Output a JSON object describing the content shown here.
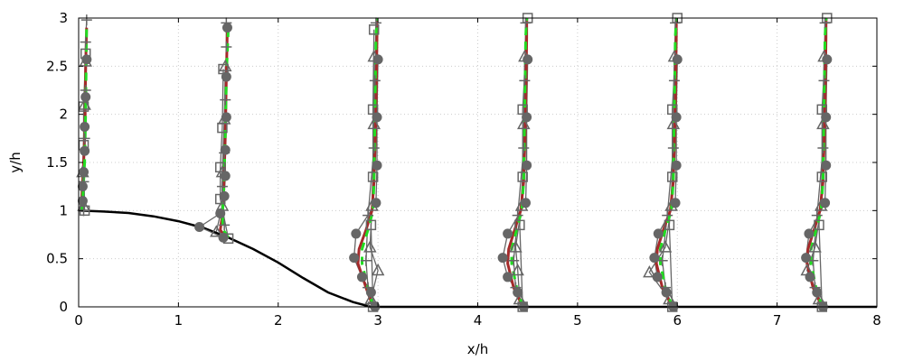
{
  "chart_data": {
    "type": "line",
    "title": "",
    "xlabel": "x/h",
    "ylabel": "y/h",
    "xlim": [
      0,
      8
    ],
    "ylim": [
      0,
      3
    ],
    "x_ticks": [
      "0",
      "1",
      "2",
      "3",
      "4",
      "5",
      "6",
      "7",
      "8"
    ],
    "y_ticks": [
      "0",
      "0.5",
      "1",
      "1.5",
      "2",
      "2.5",
      "3"
    ],
    "grid": true,
    "legend": "none",
    "colors": {
      "wall": "#000000",
      "profile_solid": "#a52a2a",
      "profile_dashed": "#22dd22",
      "markers": "#666666",
      "grid": "#cccccc"
    },
    "hill_wall": {
      "x": [
        0,
        0.25,
        0.5,
        0.75,
        1.0,
        1.25,
        1.5,
        1.75,
        2.0,
        2.25,
        2.5,
        2.75,
        2.93,
        3.2,
        8.0
      ],
      "y": [
        1.0,
        0.99,
        0.975,
        0.94,
        0.89,
        0.82,
        0.72,
        0.6,
        0.46,
        0.3,
        0.15,
        0.05,
        0.0,
        0.0,
        0.0
      ]
    },
    "stations": [
      {
        "x0": 0.05,
        "y": [
          1.0,
          1.1,
          1.3,
          1.5,
          1.75,
          2.0,
          2.5,
          2.9
        ],
        "solid": [
          0.02,
          0.03,
          0.04,
          0.05,
          0.06,
          0.065,
          0.07,
          0.08
        ],
        "dashed": [
          0.03,
          0.04,
          0.05,
          0.06,
          0.065,
          0.07,
          0.075,
          0.08
        ],
        "circles": {
          "y": [
            1.1,
            1.25,
            1.4,
            1.62,
            1.87,
            2.18,
            2.57
          ],
          "x": [
            0.04,
            0.04,
            0.05,
            0.06,
            0.06,
            0.07,
            0.08
          ]
        },
        "squares": {
          "y": [
            1.0,
            1.68,
            2.08,
            2.63
          ],
          "x": [
            0.06,
            0.05,
            0.05,
            0.07
          ]
        },
        "triangles": {
          "y": [
            1.05,
            1.4,
            2.1,
            2.55
          ],
          "x": [
            0.05,
            0.04,
            0.06,
            0.07
          ]
        },
        "plus": {
          "y": [
            1.0,
            1.3,
            1.75,
            2.25,
            2.75,
            2.98
          ],
          "x": [
            0.05,
            0.05,
            0.06,
            0.07,
            0.07,
            0.08
          ]
        }
      },
      {
        "x0": 1.45,
        "y": [
          0.72,
          0.8,
          0.95,
          1.1,
          1.4,
          1.8,
          2.4,
          2.9
        ],
        "solid": [
          1.47,
          1.42,
          1.44,
          1.45,
          1.46,
          1.47,
          1.48,
          1.49
        ],
        "dashed": [
          1.5,
          1.45,
          1.44,
          1.45,
          1.46,
          1.47,
          1.48,
          1.5
        ],
        "circles": {
          "y": [
            0.72,
            0.83,
            0.97,
            1.15,
            1.36,
            1.63,
            1.97,
            2.39,
            2.9
          ],
          "x": [
            1.45,
            1.21,
            1.42,
            1.46,
            1.47,
            1.47,
            1.48,
            1.48,
            1.49
          ]
        },
        "squares": {
          "y": [
            0.71,
            1.12,
            1.45,
            1.86,
            2.47
          ],
          "x": [
            1.5,
            1.42,
            1.42,
            1.44,
            1.45
          ]
        },
        "triangles": {
          "y": [
            0.78,
            1.05,
            1.4,
            1.95,
            2.5
          ],
          "x": [
            1.38,
            1.44,
            1.44,
            1.46,
            1.47
          ]
        },
        "plus": {
          "y": [
            0.85,
            1.25,
            1.6,
            2.15,
            2.7,
            2.95
          ],
          "x": [
            1.46,
            1.44,
            1.46,
            1.47,
            1.48,
            1.48
          ]
        }
      },
      {
        "x0": 2.95,
        "y": [
          0.0,
          0.2,
          0.45,
          0.6,
          0.8,
          1.0,
          1.3,
          2.0,
          2.8,
          3.0
        ],
        "solid": [
          2.95,
          2.88,
          2.8,
          2.81,
          2.88,
          2.94,
          2.96,
          2.98,
          2.99,
          2.99
        ],
        "dashed": [
          2.95,
          2.9,
          2.84,
          2.84,
          2.9,
          2.95,
          2.96,
          2.97,
          2.98,
          2.99
        ],
        "circles": {
          "y": [
            0.0,
            0.15,
            0.31,
            0.51,
            0.76,
            1.08,
            1.47,
            1.97,
            2.57
          ],
          "x": [
            2.97,
            2.93,
            2.84,
            2.76,
            2.78,
            2.98,
            2.99,
            2.99,
            3.0
          ]
        },
        "squares": {
          "y": [
            0.0,
            0.85,
            1.35,
            2.05,
            2.88
          ],
          "x": [
            2.95,
            2.93,
            2.95,
            2.95,
            2.96
          ]
        },
        "triangles": {
          "y": [
            0.08,
            0.38,
            0.62,
            1.05,
            1.9,
            2.6
          ],
          "x": [
            2.93,
            3.0,
            2.92,
            2.94,
            2.96,
            2.96
          ]
        },
        "plus": {
          "y": [
            0.2,
            0.48,
            0.95,
            1.65,
            2.35,
            2.95
          ],
          "x": [
            2.9,
            2.88,
            2.9,
            2.96,
            2.97,
            2.98
          ]
        }
      },
      {
        "x0": 4.45,
        "y": [
          0.0,
          0.2,
          0.45,
          0.6,
          0.8,
          1.0,
          1.3,
          2.0,
          2.8,
          3.0
        ],
        "solid": [
          4.45,
          4.36,
          4.3,
          4.31,
          4.37,
          4.43,
          4.46,
          4.48,
          4.49,
          4.49
        ],
        "dashed": [
          4.45,
          4.39,
          4.34,
          4.34,
          4.39,
          4.44,
          4.46,
          4.47,
          4.48,
          4.49
        ],
        "circles": {
          "y": [
            0.0,
            0.15,
            0.31,
            0.51,
            0.76,
            1.08,
            1.47,
            1.97,
            2.57
          ],
          "x": [
            4.46,
            4.4,
            4.3,
            4.25,
            4.3,
            4.48,
            4.49,
            4.49,
            4.5
          ]
        },
        "squares": {
          "y": [
            0.0,
            0.85,
            1.35,
            2.05,
            3.0
          ],
          "x": [
            4.45,
            4.42,
            4.45,
            4.45,
            4.5
          ]
        },
        "triangles": {
          "y": [
            0.08,
            0.38,
            0.62,
            1.05,
            1.9,
            2.6
          ],
          "x": [
            4.42,
            4.4,
            4.38,
            4.44,
            4.46,
            4.47
          ]
        },
        "plus": {
          "y": [
            0.2,
            0.48,
            0.95,
            1.65,
            2.35,
            2.95
          ],
          "x": [
            4.38,
            4.36,
            4.4,
            4.46,
            4.47,
            4.48
          ]
        }
      },
      {
        "x0": 5.95,
        "y": [
          0.0,
          0.2,
          0.45,
          0.6,
          0.8,
          1.0,
          1.3,
          2.0,
          2.8,
          3.0
        ],
        "solid": [
          5.95,
          5.85,
          5.79,
          5.8,
          5.86,
          5.93,
          5.96,
          5.98,
          5.99,
          5.99
        ],
        "dashed": [
          5.95,
          5.88,
          5.83,
          5.83,
          5.88,
          5.94,
          5.96,
          5.97,
          5.98,
          5.99
        ],
        "circles": {
          "y": [
            0.0,
            0.15,
            0.31,
            0.51,
            0.76,
            1.08,
            1.47,
            1.97,
            2.57
          ],
          "x": [
            5.96,
            5.89,
            5.8,
            5.77,
            5.81,
            5.98,
            5.99,
            5.99,
            6.0
          ]
        },
        "squares": {
          "y": [
            0.0,
            0.85,
            1.35,
            2.05,
            3.0
          ],
          "x": [
            5.95,
            5.92,
            5.95,
            5.95,
            6.0
          ]
        },
        "triangles": {
          "y": [
            0.08,
            0.36,
            0.62,
            1.05,
            1.9,
            2.6
          ],
          "x": [
            5.92,
            5.72,
            5.88,
            5.94,
            5.96,
            5.97
          ]
        },
        "plus": {
          "y": [
            0.2,
            0.48,
            0.95,
            1.65,
            2.35,
            2.95
          ],
          "x": [
            5.88,
            5.85,
            5.9,
            5.96,
            5.97,
            5.98
          ]
        }
      },
      {
        "x0": 7.45,
        "y": [
          0.0,
          0.2,
          0.45,
          0.6,
          0.8,
          1.0,
          1.3,
          2.0,
          2.8,
          3.0
        ],
        "solid": [
          7.45,
          7.36,
          7.3,
          7.31,
          7.37,
          7.43,
          7.46,
          7.48,
          7.49,
          7.49
        ],
        "dashed": [
          7.45,
          7.39,
          7.34,
          7.34,
          7.39,
          7.44,
          7.46,
          7.47,
          7.48,
          7.49
        ],
        "circles": {
          "y": [
            0.0,
            0.15,
            0.31,
            0.51,
            0.76,
            1.08,
            1.47,
            1.97,
            2.57
          ],
          "x": [
            7.46,
            7.4,
            7.33,
            7.29,
            7.32,
            7.48,
            7.49,
            7.49,
            7.5
          ]
        },
        "squares": {
          "y": [
            0.0,
            0.85,
            1.35,
            2.05,
            3.0
          ],
          "x": [
            7.45,
            7.42,
            7.45,
            7.45,
            7.5
          ]
        },
        "triangles": {
          "y": [
            0.08,
            0.38,
            0.62,
            1.05,
            1.9,
            2.6
          ],
          "x": [
            7.42,
            7.3,
            7.38,
            7.44,
            7.46,
            7.47
          ]
        },
        "plus": {
          "y": [
            0.2,
            0.48,
            0.95,
            1.65,
            2.35,
            2.95
          ],
          "x": [
            7.38,
            7.36,
            7.4,
            7.46,
            7.47,
            7.48
          ]
        }
      }
    ]
  }
}
